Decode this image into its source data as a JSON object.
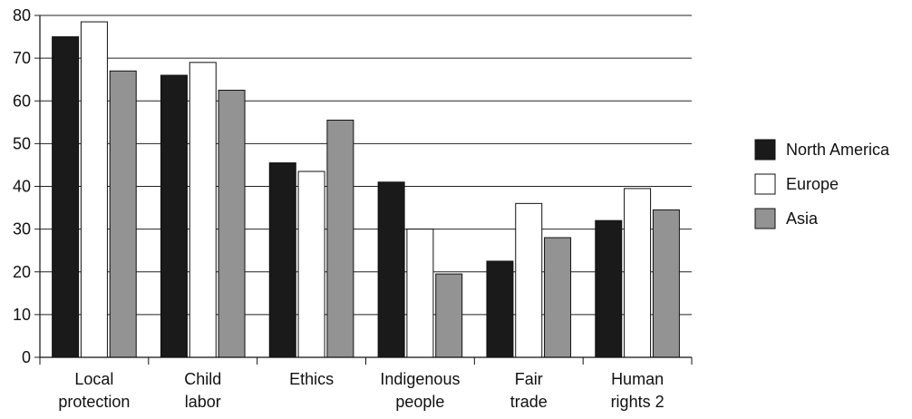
{
  "chart_data": {
    "type": "bar",
    "title": "",
    "xlabel": "",
    "ylabel": "",
    "ylim": [
      0,
      80
    ],
    "yticks": [
      0,
      10,
      20,
      30,
      40,
      50,
      60,
      70,
      80
    ],
    "grid": true,
    "legend_position": "right",
    "categories": [
      [
        "Local",
        "protection"
      ],
      [
        "Child",
        "labor"
      ],
      [
        "Ethics"
      ],
      [
        "Indigenous",
        "people"
      ],
      [
        "Fair",
        "trade"
      ],
      [
        "Human",
        "rights 2"
      ]
    ],
    "series": [
      {
        "name": "North America",
        "color": "#1a1a1a",
        "values": [
          75,
          66,
          45.5,
          41,
          22.5,
          32
        ]
      },
      {
        "name": "Europe",
        "color": "#ffffff",
        "values": [
          78.5,
          69,
          43.5,
          30,
          36,
          39.5
        ]
      },
      {
        "name": "Asia",
        "color": "#939393",
        "values": [
          67,
          62.5,
          55.5,
          19.5,
          28,
          34.5
        ]
      }
    ]
  }
}
